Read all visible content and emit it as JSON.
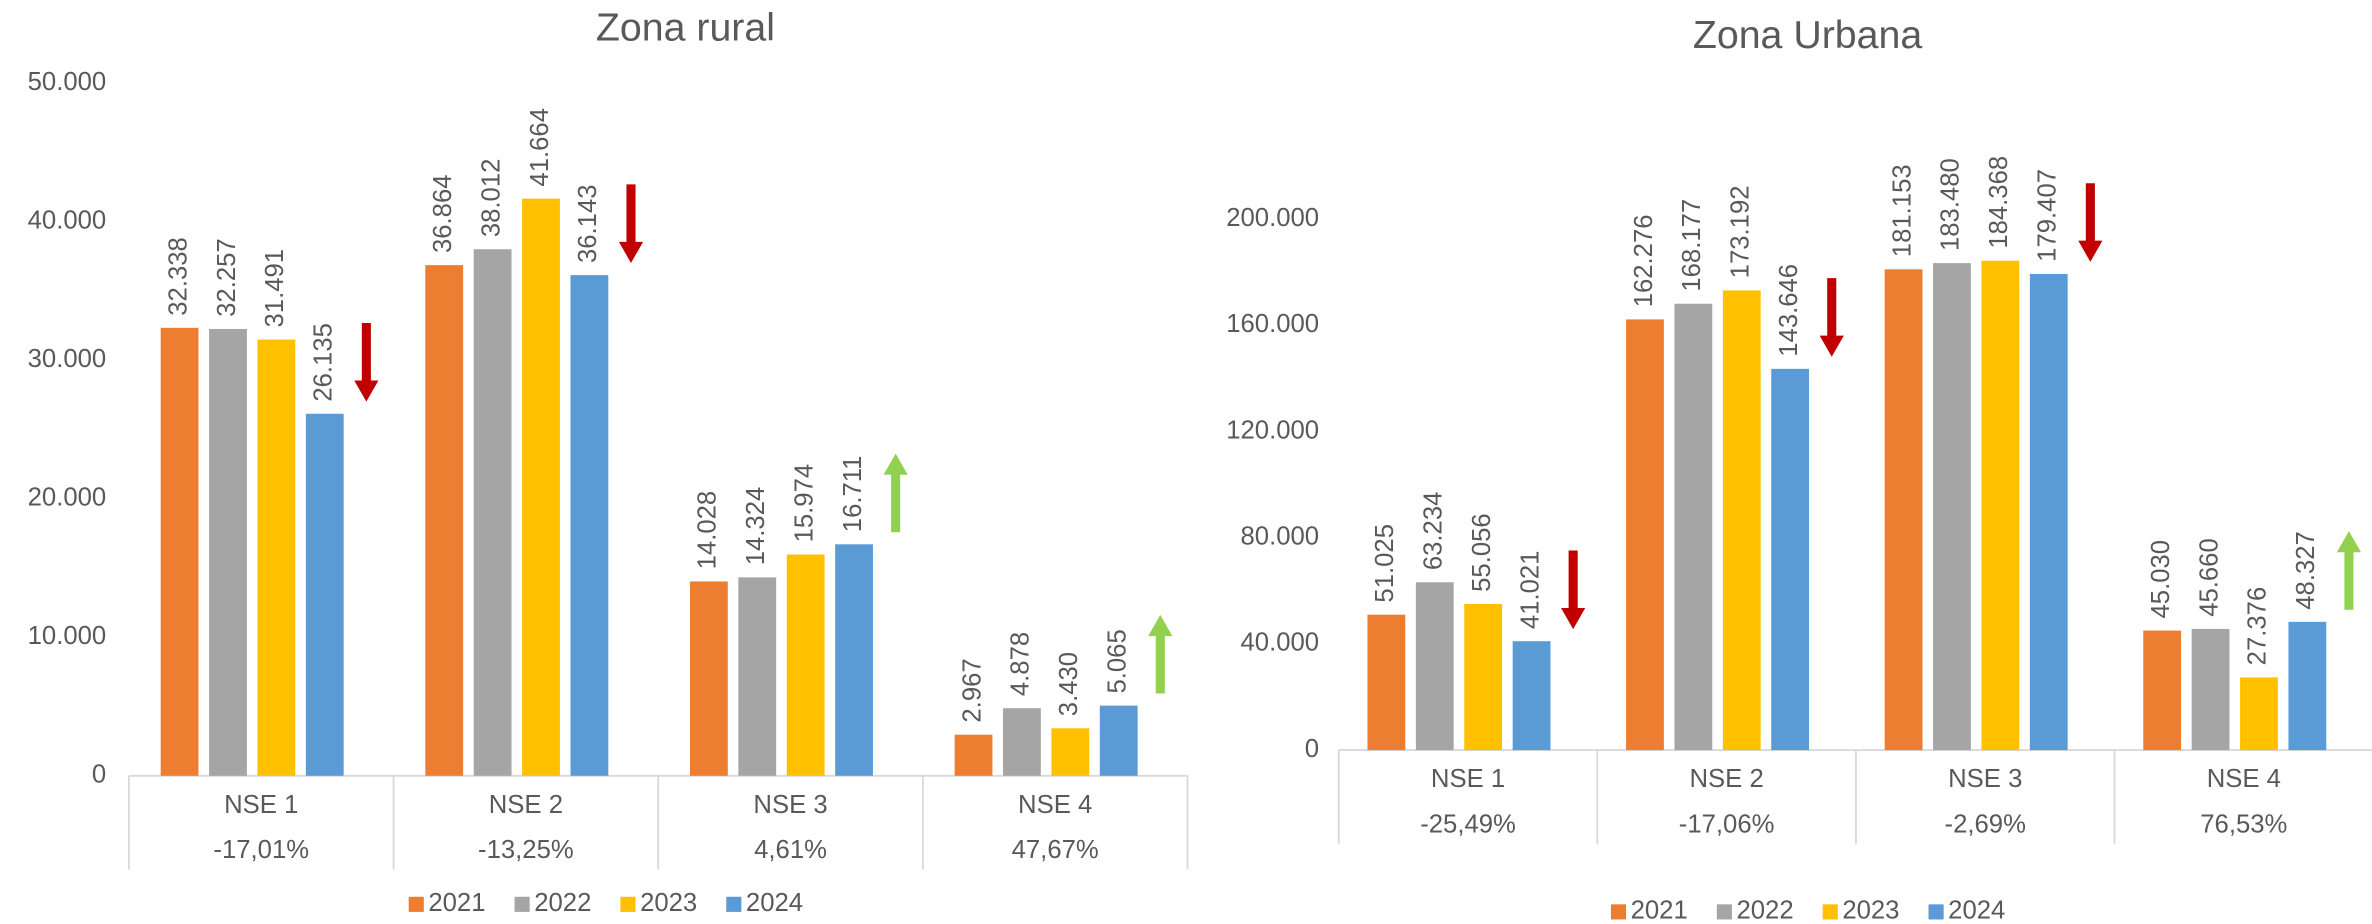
{
  "chart_data": [
    {
      "type": "bar",
      "title": "Zona rural",
      "categories": [
        "NSE 1",
        "NSE 2",
        "NSE 3",
        "NSE 4"
      ],
      "changes": [
        -17.01,
        -13.25,
        4.61,
        47.67
      ],
      "change_labels": [
        "-17,01%",
        "-13,25%",
        "4,61%",
        "47,67%"
      ],
      "ylim": [
        0,
        50000
      ],
      "yticks": [
        0,
        {
          "value": 10000,
          "label": "10.000"
        },
        {
          "value": 20000,
          "label": "20.000"
        },
        {
          "value": 30000,
          "label": "30.000"
        },
        {
          "value": 40000,
          "label": "40.000"
        },
        {
          "value": 50000,
          "label": "50.000"
        }
      ],
      "series": [
        {
          "name": "2021",
          "color": "#ed7d31",
          "values": [
            32338,
            36864,
            14028,
            2967
          ],
          "value_labels": [
            "32.338",
            "36.864",
            "14.028",
            "2.967"
          ]
        },
        {
          "name": "2022",
          "color": "#a5a5a5",
          "values": [
            32257,
            38012,
            14324,
            4878
          ],
          "value_labels": [
            "32.257",
            "38.012",
            "14.324",
            "4.878"
          ]
        },
        {
          "name": "2023",
          "color": "#ffc000",
          "values": [
            31491,
            41664,
            15974,
            3430
          ],
          "value_labels": [
            "31.491",
            "41.664",
            "15.974",
            "3.430"
          ]
        },
        {
          "name": "2024",
          "color": "#5b9bd5",
          "values": [
            26135,
            36143,
            16711,
            5065
          ],
          "value_labels": [
            "26.135",
            "36.143",
            "16.711",
            "5.065"
          ]
        }
      ],
      "arrow_colors": {
        "down": "#c00000",
        "up": "#92d050"
      }
    },
    {
      "type": "bar",
      "title": "Zona Urbana",
      "categories": [
        "NSE 1",
        "NSE 2",
        "NSE 3",
        "NSE 4"
      ],
      "changes": [
        -25.49,
        -17.06,
        -2.69,
        76.53
      ],
      "change_labels": [
        "-25,49%",
        "-17,06%",
        "-2,69%",
        "76,53%"
      ],
      "ylim": [
        0,
        200000
      ],
      "yticks": [
        0,
        {
          "value": 40000,
          "label": "40.000"
        },
        {
          "value": 80000,
          "label": "80.000"
        },
        {
          "value": 120000,
          "label": "120.000"
        },
        {
          "value": 160000,
          "label": "160.000"
        },
        {
          "value": 200000,
          "label": "200.000"
        }
      ],
      "series": [
        {
          "name": "2021",
          "color": "#ed7d31",
          "values": [
            51025,
            162276,
            181153,
            45030
          ],
          "value_labels": [
            "51.025",
            "162.276",
            "181.153",
            "45.030"
          ]
        },
        {
          "name": "2022",
          "color": "#a5a5a5",
          "values": [
            63234,
            168177,
            183480,
            45660
          ],
          "value_labels": [
            "63.234",
            "168.177",
            "183.480",
            "45.660"
          ]
        },
        {
          "name": "2023",
          "color": "#ffc000",
          "values": [
            55056,
            173192,
            184368,
            27376
          ],
          "value_labels": [
            "55.056",
            "173.192",
            "184.368",
            "27.376"
          ]
        },
        {
          "name": "2024",
          "color": "#5b9bd5",
          "values": [
            41021,
            143646,
            179407,
            48327
          ],
          "value_labels": [
            "41.021",
            "143.646",
            "179.407",
            "48.327"
          ]
        }
      ],
      "arrow_colors": {
        "down": "#c00000",
        "up": "#92d050"
      }
    }
  ]
}
